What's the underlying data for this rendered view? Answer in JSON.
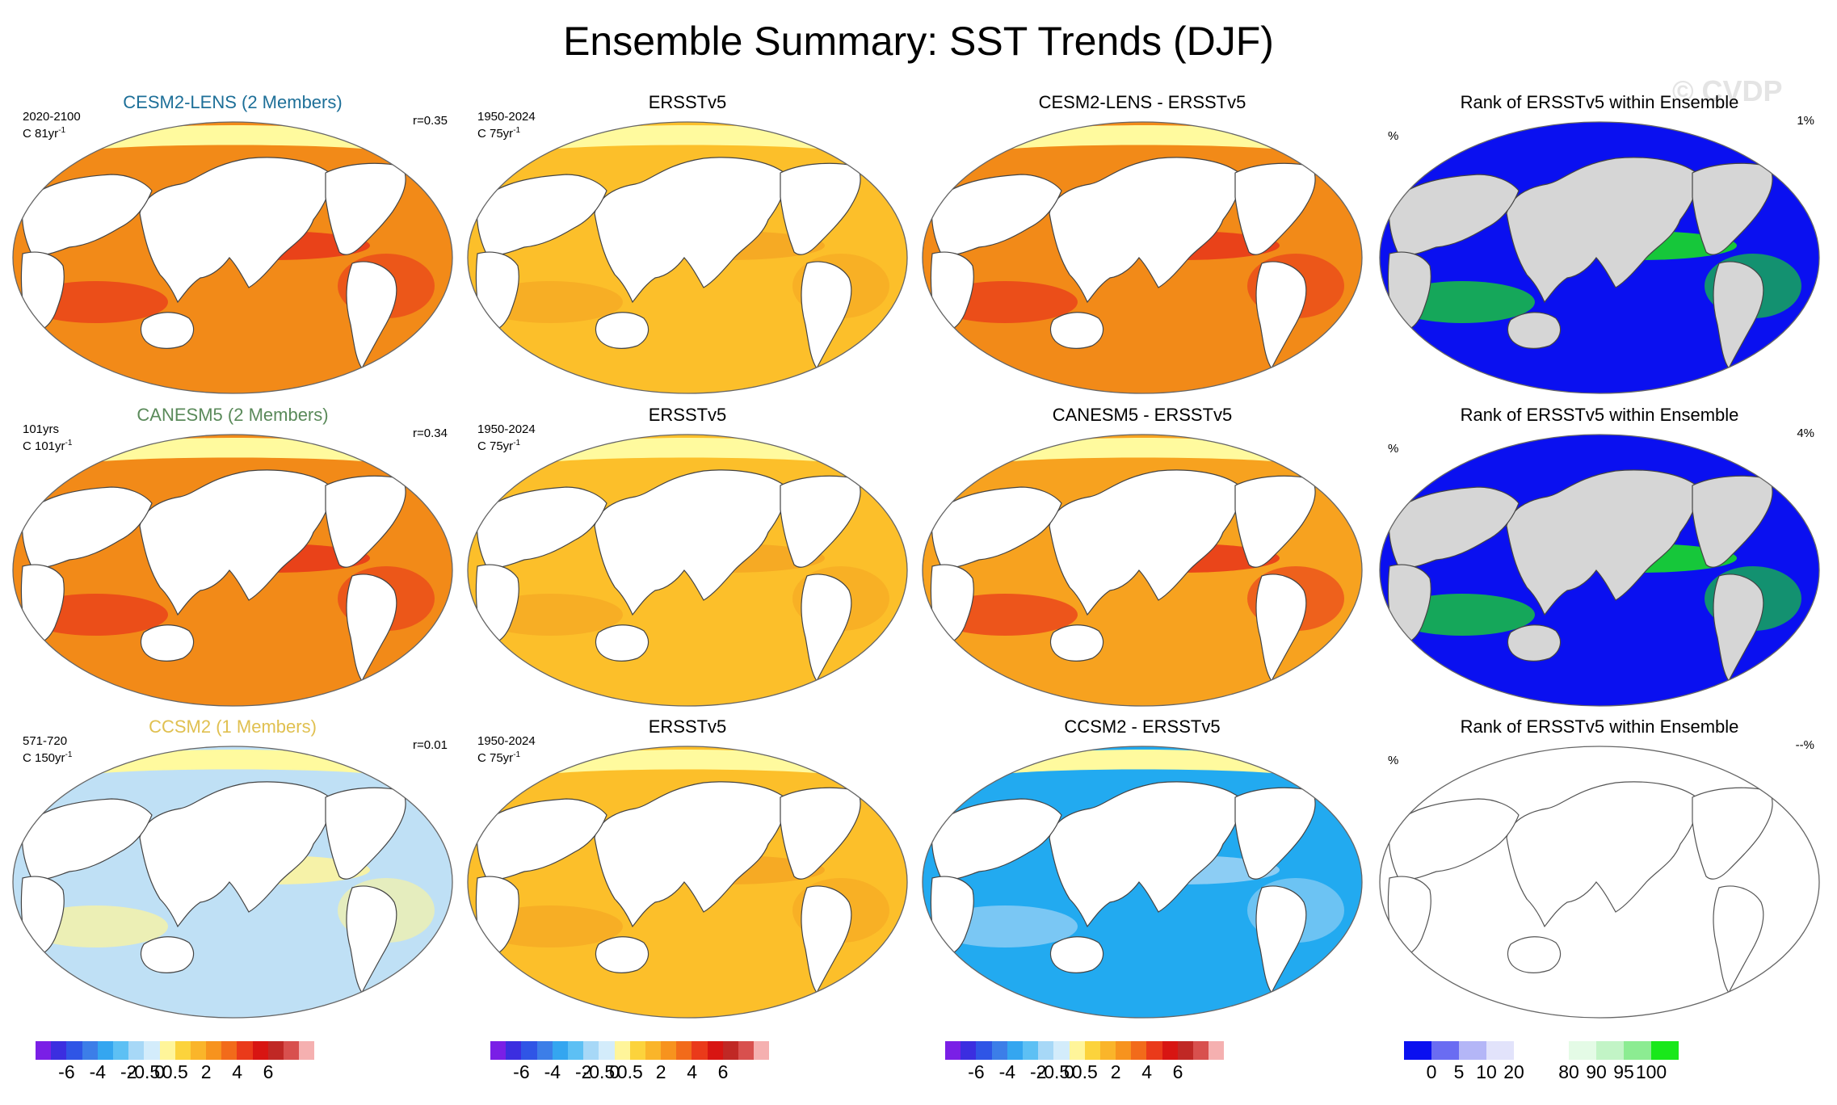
{
  "title": "Ensemble Summary: SST Trends (DJF)",
  "watermark": "© CVDP",
  "colors": {
    "land": "#ffffff",
    "land_rank": "#d6d6d6",
    "coast": "#444444",
    "sea_ice": "#fffa9e"
  },
  "rows": [
    {
      "model": {
        "title": "CESM2-LENS (2 Members)",
        "title_color": "#1d6f98",
        "years": "2020-2100",
        "rate": "C 81yr",
        "rate_exp": "-1",
        "r": "r=0.35",
        "fill": "#f28a18",
        "accent": "#e8351a"
      },
      "obs": {
        "title": "ERSSTv5",
        "years": "1950-2024",
        "rate": "C 75yr",
        "rate_exp": "-1",
        "fill": "#fcbf2a",
        "accent": "#f5a623"
      },
      "diff": {
        "title": "CESM2-LENS - ERSSTv5",
        "fill": "#f28a18",
        "accent": "#e8351a"
      },
      "rank": {
        "title": "Rank of ERSSTv5 within Ensemble",
        "pct_label": "%",
        "pct_value": "1%",
        "fill": "#0a10f0",
        "accent": "#19e81a"
      }
    },
    {
      "model": {
        "title": "CANESM5 (2 Members)",
        "title_color": "#5a8a5a",
        "years": "101yrs",
        "rate": "C 101yr",
        "rate_exp": "-1",
        "r": "r=0.34",
        "fill": "#f28a18",
        "accent": "#e8351a"
      },
      "obs": {
        "title": "ERSSTv5",
        "years": "1950-2024",
        "rate": "C 75yr",
        "rate_exp": "-1",
        "fill": "#fcbf2a",
        "accent": "#f5a623"
      },
      "diff": {
        "title": "CANESM5 - ERSSTv5",
        "fill": "#f7a21f",
        "accent": "#e8351a"
      },
      "rank": {
        "title": "Rank of ERSSTv5 within Ensemble",
        "pct_label": "%",
        "pct_value": "4%",
        "fill": "#0a10f0",
        "accent": "#19e81a"
      }
    },
    {
      "model": {
        "title": "CCSM2 (1 Members)",
        "title_color": "#e0c050",
        "years": "571-720",
        "rate": "C 150yr",
        "rate_exp": "-1",
        "r": "r=0.01",
        "fill": "#bfe0f5",
        "accent": "#fff59a"
      },
      "obs": {
        "title": "ERSSTv5",
        "years": "1950-2024",
        "rate": "C 75yr",
        "rate_exp": "-1",
        "fill": "#fcbf2a",
        "accent": "#f5a623"
      },
      "diff": {
        "title": "CCSM2 - ERSSTv5",
        "fill": "#22aaf0",
        "accent": "#9fd3f5"
      },
      "rank": {
        "title": "Rank of ERSSTv5 within Ensemble",
        "pct_label": "%",
        "pct_value": "--%",
        "fill": "#ffffff",
        "accent": "#ffffff"
      }
    }
  ],
  "colorbars": [
    {
      "colors": [
        "#7a1fe6",
        "#3b2ee0",
        "#2f55e6",
        "#3c7ee8",
        "#34a6f0",
        "#5dc0f4",
        "#a7d8f7",
        "#d3ecfb",
        "#fff59a",
        "#fcd33c",
        "#fab52a",
        "#f7931e",
        "#f26b1a",
        "#ea3a1a",
        "#d81512",
        "#c02825",
        "#d8504e",
        "#f5b0b0"
      ],
      "labels": [
        "-6",
        "-4",
        "-2",
        "-0.5",
        "0",
        "0.5",
        "2",
        "4",
        "6"
      ]
    },
    {
      "colors": [
        "#7a1fe6",
        "#3b2ee0",
        "#2f55e6",
        "#3c7ee8",
        "#34a6f0",
        "#5dc0f4",
        "#a7d8f7",
        "#d3ecfb",
        "#fff59a",
        "#fcd33c",
        "#fab52a",
        "#f7931e",
        "#f26b1a",
        "#ea3a1a",
        "#d81512",
        "#c02825",
        "#d8504e",
        "#f5b0b0"
      ],
      "labels": [
        "-6",
        "-4",
        "-2",
        "-0.5",
        "0",
        "0.5",
        "2",
        "4",
        "6"
      ]
    },
    {
      "colors": [
        "#7a1fe6",
        "#3b2ee0",
        "#2f55e6",
        "#3c7ee8",
        "#34a6f0",
        "#5dc0f4",
        "#a7d8f7",
        "#d3ecfb",
        "#fff59a",
        "#fcd33c",
        "#fab52a",
        "#f7931e",
        "#f26b1a",
        "#ea3a1a",
        "#d81512",
        "#c02825",
        "#d8504e",
        "#f5b0b0"
      ],
      "labels": [
        "-6",
        "-4",
        "-2",
        "-0.5",
        "0",
        "0.5",
        "2",
        "4",
        "6"
      ]
    },
    {
      "colors": [
        "#0a10f0",
        "#6a6cf2",
        "#b4b6f7",
        "#e2e3fb",
        "#ffffff",
        "#ffffff",
        "#e4fbe6",
        "#c2f4c6",
        "#8cec92",
        "#19e81a"
      ],
      "labels": [
        "0",
        "5",
        "10",
        "20",
        "80",
        "90",
        "95",
        "100"
      ]
    }
  ]
}
